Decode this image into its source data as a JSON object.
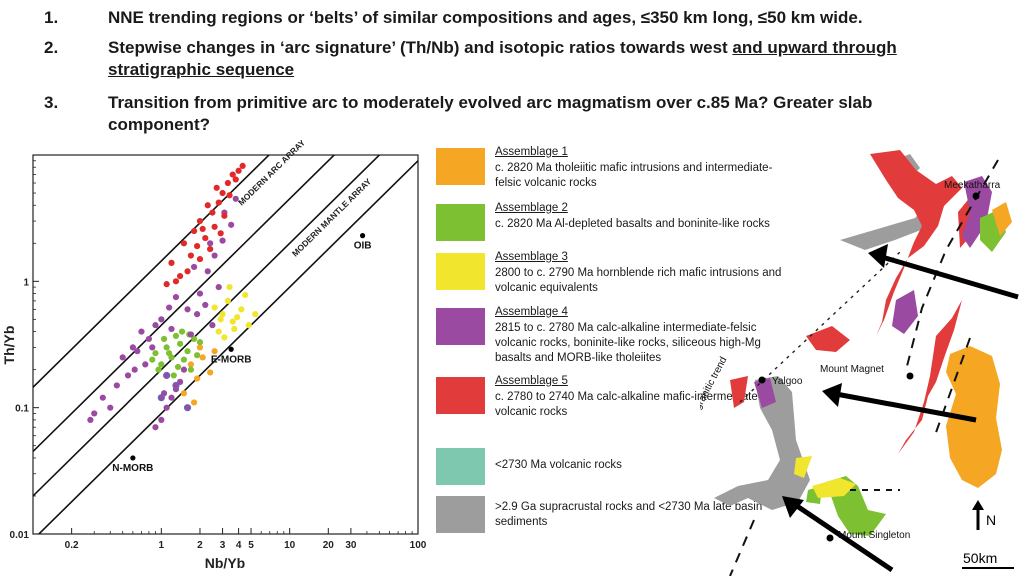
{
  "bullets": [
    {
      "num": "1.",
      "text": "NNE trending regions or ‘belts’ of similar compositions and ages, ≤350 km long, ≤50 km wide."
    },
    {
      "num": "2.",
      "text": "Stepwise changes in ‘arc signature’ (Th/Nb) and isotopic ratios towards west ",
      "text_underlined": "and upward through stratigraphic sequence"
    },
    {
      "num": "3.",
      "text": "Transition from primitive arc to moderately evolved arc magmatism over c.85 Ma? Greater slab component?"
    }
  ],
  "chart_data": {
    "type": "scatter",
    "title": "",
    "xlabel": "Nb/Yb",
    "ylabel": "Th/Yb",
    "xscale": "log",
    "yscale": "log",
    "xlim": [
      0.1,
      100
    ],
    "ylim": [
      0.01,
      10
    ],
    "x_ticks": [
      {
        "value": 0.2,
        "label": "0.2"
      },
      {
        "value": 1,
        "label": "1"
      },
      {
        "value": 2,
        "label": "2"
      },
      {
        "value": 3,
        "label": "3"
      },
      {
        "value": 4,
        "label": "4"
      },
      {
        "value": 5,
        "label": "5"
      },
      {
        "value": 10,
        "label": "10"
      },
      {
        "value": 20,
        "label": "20"
      },
      {
        "value": 30,
        "label": "30"
      },
      {
        "value": 100,
        "label": "100"
      }
    ],
    "y_ticks": [
      {
        "value": 0.01,
        "label": "0.01"
      },
      {
        "value": 0.1,
        "label": "0.1"
      },
      {
        "value": 1,
        "label": "1"
      }
    ],
    "arrays": [
      {
        "label": "MODERN ARC ARRAY"
      },
      {
        "label": "MODERN MANTLE ARRAY"
      }
    ],
    "reference_points": [
      {
        "name": "OIB",
        "x": 37,
        "y": 2.3
      },
      {
        "name": "E-MORB",
        "x": 3.5,
        "y": 0.29
      },
      {
        "name": "N-MORB",
        "x": 0.6,
        "y": 0.04
      }
    ],
    "series": [
      {
        "name": "Assemblage 1",
        "color": "#f5a623",
        "points": [
          [
            1.7,
            0.22
          ],
          [
            2.1,
            0.25
          ],
          [
            1.9,
            0.17
          ],
          [
            2.4,
            0.19
          ],
          [
            1.5,
            0.13
          ],
          [
            2.0,
            0.3
          ],
          [
            1.8,
            0.11
          ],
          [
            2.6,
            0.28
          ]
        ]
      },
      {
        "name": "Assemblage 2",
        "color": "#7dc032",
        "points": [
          [
            1.4,
            0.32
          ],
          [
            1.6,
            0.28
          ],
          [
            1.2,
            0.25
          ],
          [
            1.8,
            0.35
          ],
          [
            1.0,
            0.22
          ],
          [
            0.9,
            0.27
          ],
          [
            1.3,
            0.37
          ],
          [
            1.7,
            0.2
          ],
          [
            1.1,
            0.3
          ],
          [
            1.5,
            0.24
          ],
          [
            2.0,
            0.33
          ],
          [
            0.95,
            0.2
          ],
          [
            1.25,
            0.18
          ],
          [
            1.45,
            0.4
          ],
          [
            1.9,
            0.26
          ],
          [
            0.85,
            0.24
          ],
          [
            1.05,
            0.35
          ],
          [
            1.35,
            0.21
          ],
          [
            1.65,
            0.38
          ],
          [
            1.15,
            0.27
          ]
        ]
      },
      {
        "name": "Assemblage 3",
        "color": "#f2e52e",
        "points": [
          [
            3.0,
            0.55
          ],
          [
            3.6,
            0.48
          ],
          [
            2.8,
            0.4
          ],
          [
            4.2,
            0.6
          ],
          [
            3.3,
            0.7
          ],
          [
            4.8,
            0.45
          ],
          [
            2.6,
            0.62
          ],
          [
            3.9,
            0.52
          ],
          [
            3.1,
            0.36
          ],
          [
            4.5,
            0.78
          ],
          [
            3.4,
            0.9
          ],
          [
            2.9,
            0.5
          ],
          [
            5.4,
            0.55
          ],
          [
            3.7,
            0.42
          ]
        ]
      },
      {
        "name": "Assemblage 4",
        "color": "#9b4aa2",
        "points": [
          [
            0.6,
            0.3
          ],
          [
            0.7,
            0.4
          ],
          [
            0.8,
            0.35
          ],
          [
            0.5,
            0.25
          ],
          [
            0.9,
            0.45
          ],
          [
            1.0,
            0.5
          ],
          [
            0.65,
            0.28
          ],
          [
            0.75,
            0.22
          ],
          [
            0.55,
            0.18
          ],
          [
            0.45,
            0.15
          ],
          [
            0.35,
            0.12
          ],
          [
            0.3,
            0.09
          ],
          [
            0.28,
            0.08
          ],
          [
            0.4,
            0.1
          ],
          [
            1.1,
            0.1
          ],
          [
            1.2,
            0.12
          ],
          [
            1.3,
            0.14
          ],
          [
            1.0,
            0.08
          ],
          [
            0.9,
            0.07
          ],
          [
            1.4,
            0.16
          ],
          [
            1.5,
            0.2
          ],
          [
            1.6,
            0.6
          ],
          [
            2.0,
            0.8
          ],
          [
            2.3,
            1.2
          ],
          [
            2.6,
            1.6
          ],
          [
            3.0,
            2.1
          ],
          [
            3.5,
            2.8
          ],
          [
            2.2,
            0.65
          ],
          [
            1.9,
            0.55
          ],
          [
            2.8,
            0.9
          ],
          [
            1.2,
            0.42
          ],
          [
            1.7,
            0.38
          ],
          [
            0.85,
            0.3
          ],
          [
            1.15,
            0.62
          ],
          [
            2.5,
            0.45
          ],
          [
            1.8,
            1.3
          ],
          [
            2.4,
            2.0
          ],
          [
            3.1,
            3.5
          ],
          [
            3.8,
            4.5
          ],
          [
            1.3,
            0.75
          ],
          [
            0.62,
            0.2
          ],
          [
            1.05,
            0.13
          ]
        ]
      },
      {
        "name": "Assemblage 5",
        "color": "#e02a2a",
        "points": [
          [
            1.5,
            2.0
          ],
          [
            1.8,
            2.5
          ],
          [
            2.0,
            3.0
          ],
          [
            2.2,
            2.2
          ],
          [
            2.5,
            3.5
          ],
          [
            2.8,
            4.2
          ],
          [
            3.0,
            5.0
          ],
          [
            3.3,
            6.0
          ],
          [
            3.6,
            7.0
          ],
          [
            4.0,
            7.5
          ],
          [
            2.4,
            1.8
          ],
          [
            2.0,
            1.5
          ],
          [
            1.6,
            1.2
          ],
          [
            1.3,
            1.0
          ],
          [
            1.1,
            0.95
          ],
          [
            2.6,
            2.7
          ],
          [
            3.1,
            3.3
          ],
          [
            1.9,
            1.9
          ],
          [
            1.2,
            1.4
          ],
          [
            2.3,
            4.0
          ],
          [
            2.7,
            5.5
          ],
          [
            3.4,
            4.8
          ],
          [
            3.8,
            6.4
          ],
          [
            1.7,
            1.6
          ],
          [
            2.9,
            2.4
          ],
          [
            4.3,
            8.2
          ],
          [
            1.4,
            1.1
          ],
          [
            2.1,
            2.6
          ]
        ]
      },
      {
        "name": "Assemblage 4 (blue outline)",
        "color": "#5a6bc4",
        "points": [
          [
            1.0,
            0.12
          ],
          [
            1.3,
            0.15
          ],
          [
            1.1,
            0.18
          ],
          [
            1.6,
            0.1
          ]
        ]
      }
    ]
  },
  "legend": [
    {
      "title": "Assemblage 1",
      "desc": "c. 2820 Ma tholeiitic mafic intrusions and intermediate-felsic volcanic rocks",
      "color": "#f5a623"
    },
    {
      "title": "Assemblage 2",
      "desc": "c. 2820 Ma Al-depleted basalts and boninite-like rocks",
      "color": "#7dc032"
    },
    {
      "title": "Assemblage 3",
      "desc": "2800 to c. 2790 Ma hornblende rich mafic intrusions and volcanic equivalents",
      "color": "#f2e52e"
    },
    {
      "title": "Assemblage 4",
      "desc": "2815 to c. 2780 Ma calc-alkaline intermediate-felsic volcanic rocks, boninite-like rocks, siliceous high-Mg basalts and MORB-like tholeiites",
      "color": "#9b4aa2"
    },
    {
      "title": "Assemblage 5",
      "desc": "c. 2780 to 2740 Ma calc-alkaline mafic-intermediate-felsic volcanic rocks",
      "color": "#e23b3b"
    },
    {
      "title": "",
      "desc": "<2730 Ma volcanic rocks",
      "color": "#7fc8b0"
    },
    {
      "title": "",
      "desc": ">2.9 Ga supracrustal rocks and <2730 Ma late basin sediments",
      "color": "#9d9d9d"
    }
  ],
  "map": {
    "places": [
      "Meekatharra",
      "Mount Magnet",
      "Yalgoo",
      "Mount Singleton"
    ],
    "trend_label": "ultrapotassic granitic trend",
    "north_label": "N",
    "scale_label": "50km"
  }
}
